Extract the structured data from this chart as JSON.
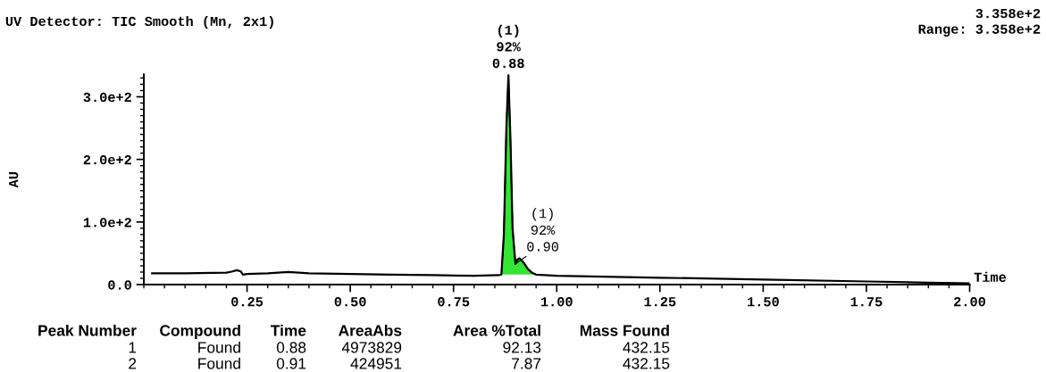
{
  "chart_data": {
    "type": "line",
    "title": "UV Detector: TIC Smooth (Mn, 2x1)",
    "xlabel": "Time",
    "ylabel": "AU",
    "xlim": [
      0,
      2.0
    ],
    "ylim": [
      0,
      335.8
    ],
    "xticks": [
      0.25,
      {
        "value": 0.5,
        "label": "0.50"
      },
      0.75,
      {
        "value": 1.0,
        "label": "1.00"
      },
      1.25,
      {
        "value": 1.5,
        "label": "1.50"
      },
      1.75,
      {
        "value": 2.0,
        "label": "2.00"
      }
    ],
    "yticks": [
      {
        "value": 0,
        "label": "0.0"
      },
      {
        "value": 100,
        "label": "1.0e+2"
      },
      {
        "value": 200,
        "label": "2.0e+2"
      },
      {
        "value": 300,
        "label": "3.0e+2"
      }
    ],
    "grid": false,
    "marker": "none",
    "line_style": "solid",
    "series": [
      {
        "color": "#000000",
        "x": [
          0.02,
          0.1,
          0.2,
          0.215,
          0.225,
          0.235,
          0.24,
          0.25,
          0.3,
          0.35,
          0.4,
          0.5,
          0.6,
          0.7,
          0.8,
          0.86,
          0.866,
          0.872,
          0.878,
          0.883,
          0.888,
          0.893,
          0.9,
          0.905,
          0.91,
          0.92,
          0.93,
          0.94,
          0.95,
          1.0,
          1.25,
          1.5,
          1.75,
          1.9,
          2.0
        ],
        "values": [
          18,
          18,
          19,
          21,
          23,
          21,
          16,
          17,
          18,
          20,
          18,
          17,
          16,
          15,
          14,
          15,
          16,
          80,
          250,
          335,
          230,
          90,
          33,
          40,
          42,
          35,
          25,
          19,
          16,
          14,
          11,
          8,
          5,
          3,
          2
        ]
      },
      {
        "type": "area",
        "color": "#33e633",
        "x": [
          0.866,
          0.872,
          0.878,
          0.883,
          0.888,
          0.893,
          0.9
        ],
        "values": [
          16,
          80,
          250,
          335,
          230,
          90,
          33
        ]
      },
      {
        "type": "area",
        "color": "#33e633",
        "x": [
          0.9,
          0.905,
          0.91,
          0.92,
          0.93,
          0.94,
          0.95
        ],
        "values": [
          33,
          40,
          42,
          35,
          25,
          19,
          16
        ]
      }
    ],
    "annotations": [
      {
        "text": "(1)\n92%\n0.88",
        "x": 0.883,
        "y": 335.8
      },
      {
        "text": "(1)\n92%\n0.90",
        "x": 0.9,
        "y": 33
      },
      "3.358e+2\nRange: 3.358e+2",
      "Peak Number",
      "Compound",
      "Time",
      "AreaAbs",
      "Area %Total",
      "Mass Found",
      "1",
      "Found",
      "0.88",
      "4973829",
      "92.13",
      "432.15",
      "2",
      "Found",
      "0.91",
      "424951",
      "7.87",
      "432.15"
    ]
  }
}
